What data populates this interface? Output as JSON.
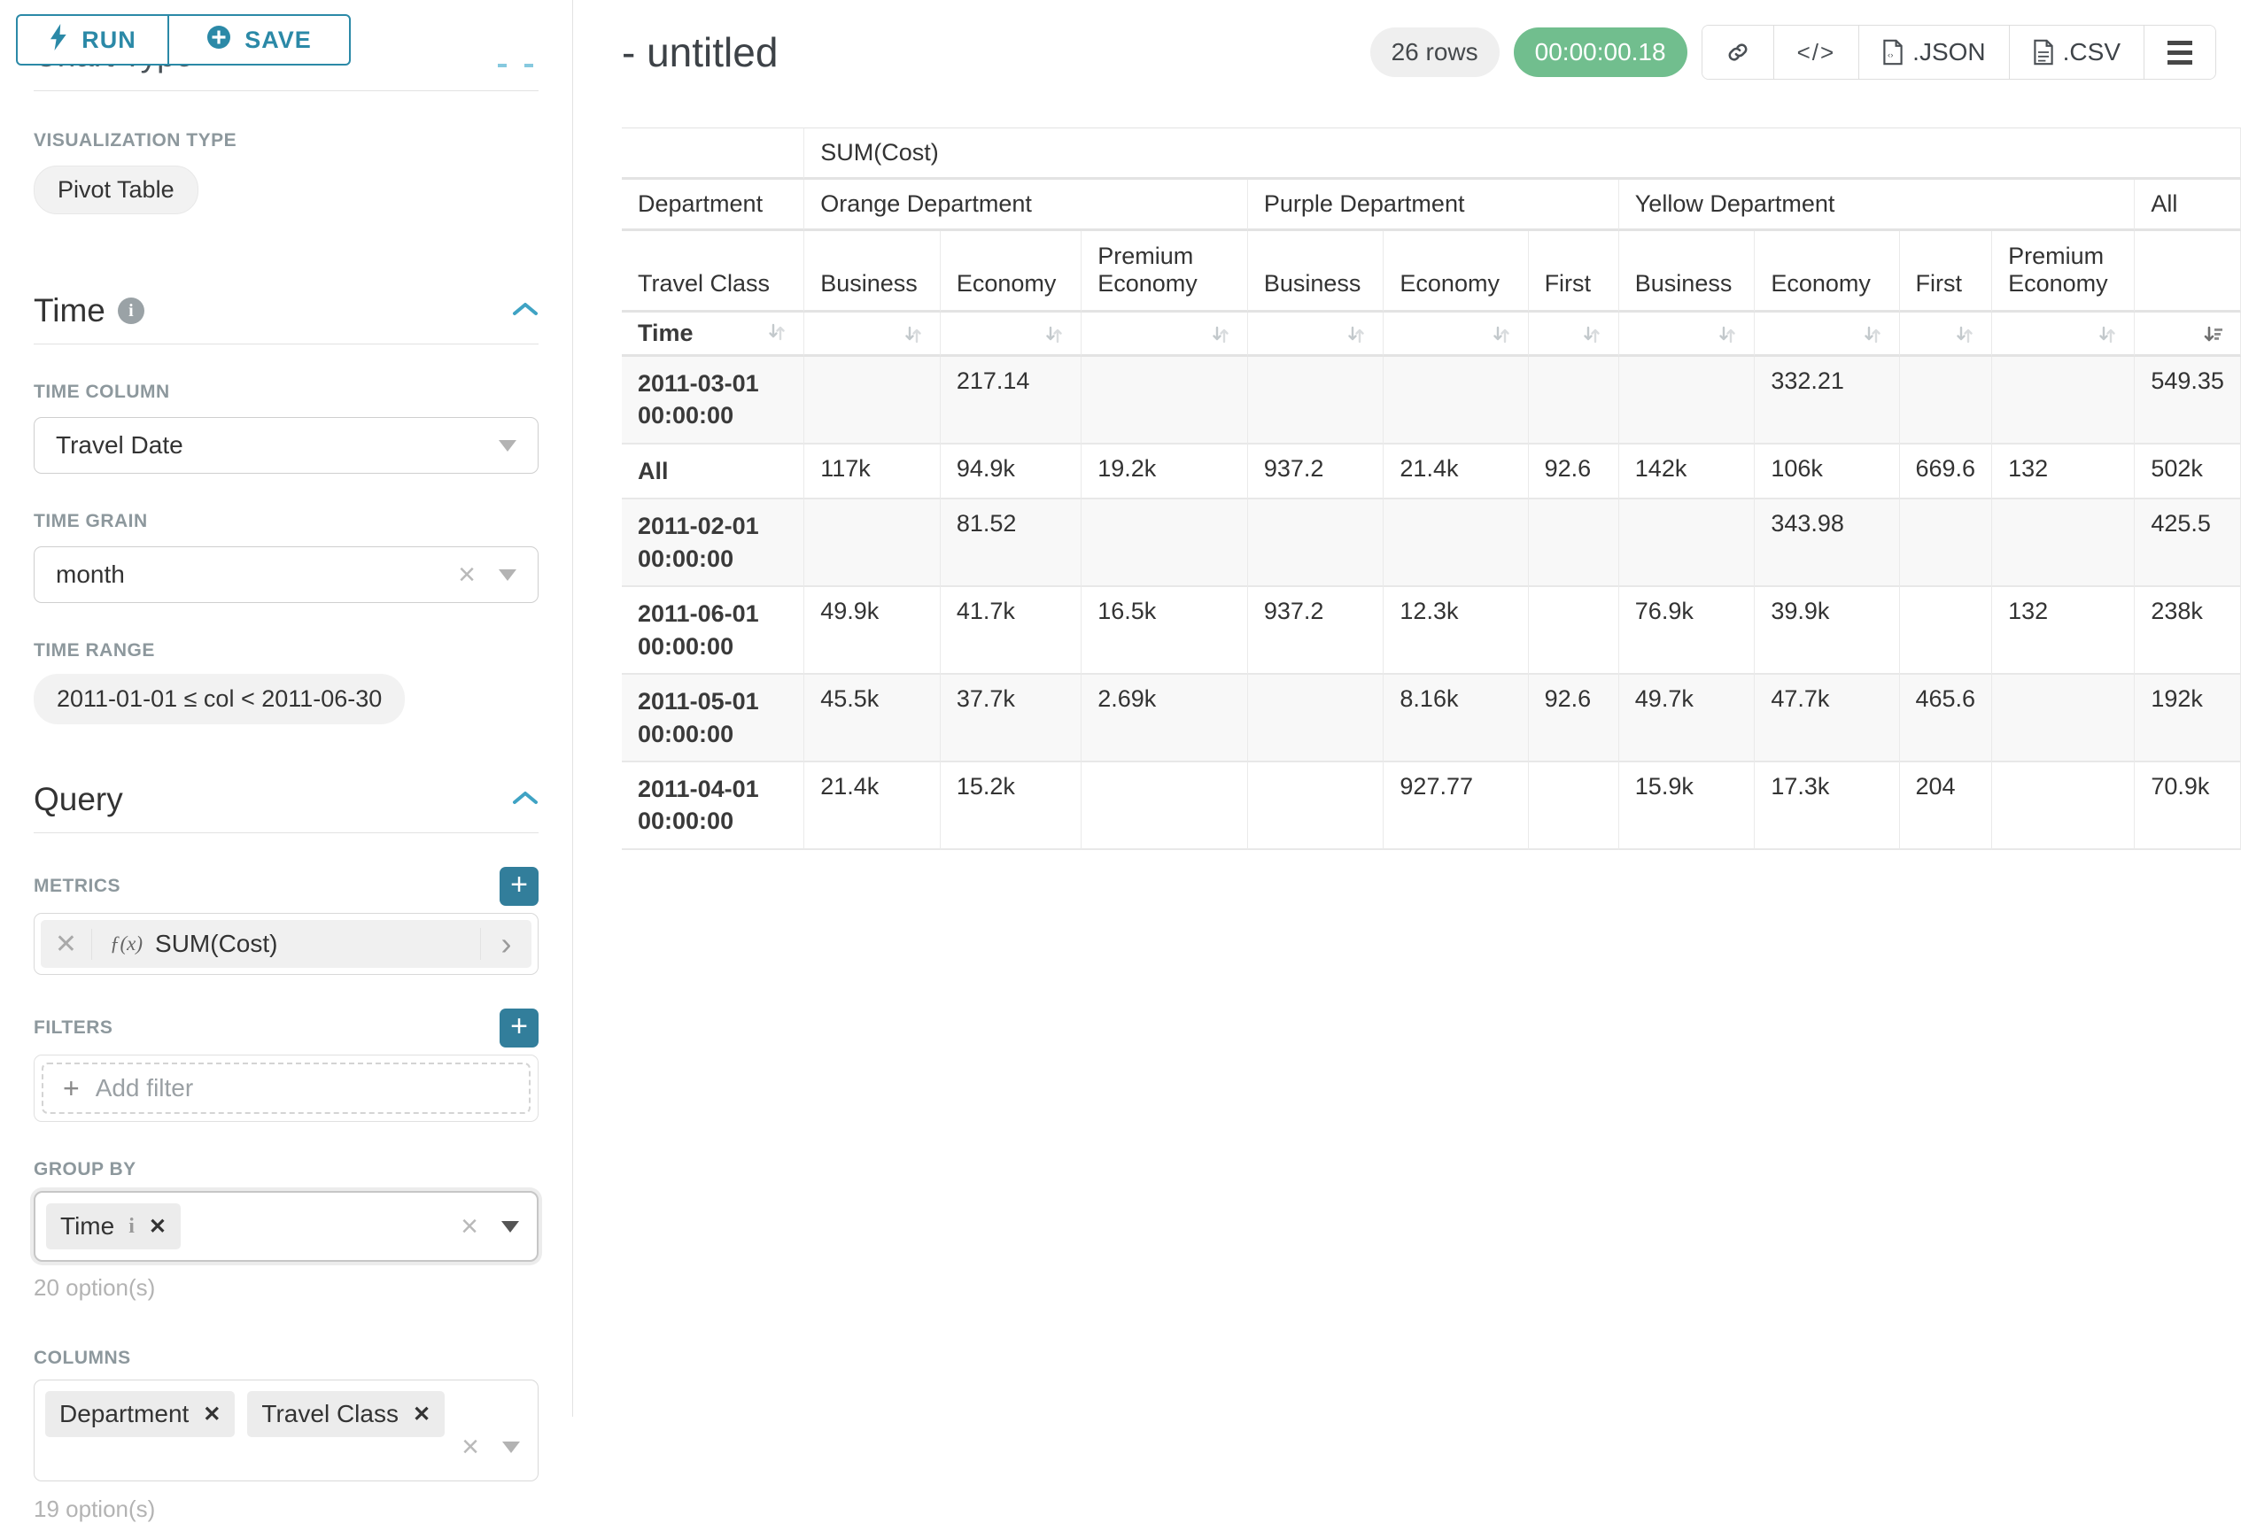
{
  "accent": "#2b89a7",
  "toolbar": {
    "run_label": "RUN",
    "save_label": "SAVE"
  },
  "sidebar": {
    "chart_type_section": "Chart Type",
    "visualization_type_label": "VISUALIZATION TYPE",
    "visualization_type_value": "Pivot Table",
    "time_section": "Time",
    "time_column_label": "TIME COLUMN",
    "time_column_value": "Travel Date",
    "time_grain_label": "TIME GRAIN",
    "time_grain_value": "month",
    "time_range_label": "TIME RANGE",
    "time_range_value": "2011-01-01 ≤ col < 2011-06-30",
    "query_section": "Query",
    "metrics_label": "METRICS",
    "metric_fn": "ƒ(x)",
    "metric_value": "SUM(Cost)",
    "filters_label": "FILTERS",
    "add_filter_label": "Add filter",
    "group_by_label": "GROUP BY",
    "group_by_chips": [
      "Time"
    ],
    "group_by_options_note": "20 option(s)",
    "columns_label": "COLUMNS",
    "columns_chips": [
      "Department",
      "Travel Class"
    ],
    "columns_options_note": "19 option(s)"
  },
  "header": {
    "title": "- untitled",
    "row_count": "26 rows",
    "duration": "00:00:00.18",
    "export_json_label": ".JSON",
    "export_csv_label": ".CSV"
  },
  "pivot": {
    "metric_header": "SUM(Cost)",
    "row_dim_labels": {
      "department": "Department",
      "travel_class": "Travel Class",
      "time": "Time"
    },
    "col_groups": [
      {
        "label": "Orange Department",
        "cols": [
          "Business",
          "Economy",
          "Premium Economy"
        ]
      },
      {
        "label": "Purple Department",
        "cols": [
          "Business",
          "Economy",
          "First"
        ]
      },
      {
        "label": "Yellow Department",
        "cols": [
          "Business",
          "Economy",
          "First",
          "Premium Economy"
        ]
      },
      {
        "label": "All",
        "cols": [
          ""
        ]
      }
    ],
    "rows": [
      {
        "label": "2011-03-01 00:00:00",
        "values": [
          "",
          "217.14",
          "",
          "",
          "",
          "",
          "",
          "332.21",
          "",
          "",
          "549.35"
        ]
      },
      {
        "label": "All",
        "values": [
          "117k",
          "94.9k",
          "19.2k",
          "937.2",
          "21.4k",
          "92.6",
          "142k",
          "106k",
          "669.6",
          "132",
          "502k"
        ]
      },
      {
        "label": "2011-02-01 00:00:00",
        "values": [
          "",
          "81.52",
          "",
          "",
          "",
          "",
          "",
          "343.98",
          "",
          "",
          "425.5"
        ]
      },
      {
        "label": "2011-06-01 00:00:00",
        "values": [
          "49.9k",
          "41.7k",
          "16.5k",
          "937.2",
          "12.3k",
          "",
          "76.9k",
          "39.9k",
          "",
          "132",
          "238k"
        ]
      },
      {
        "label": "2011-05-01 00:00:00",
        "values": [
          "45.5k",
          "37.7k",
          "2.69k",
          "",
          "8.16k",
          "92.6",
          "49.7k",
          "47.7k",
          "465.6",
          "",
          "192k"
        ]
      },
      {
        "label": "2011-04-01 00:00:00",
        "values": [
          "21.4k",
          "15.2k",
          "",
          "",
          "927.77",
          "",
          "15.9k",
          "17.3k",
          "204",
          "",
          "70.9k"
        ]
      }
    ],
    "sorted_column": "All"
  }
}
